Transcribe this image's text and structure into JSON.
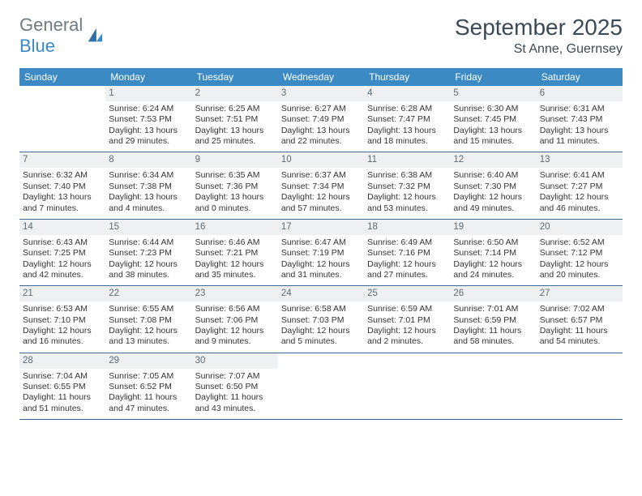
{
  "brand": {
    "word1": "General",
    "word2": "Blue"
  },
  "header": {
    "title": "September 2025",
    "location": "St Anne, Guernsey"
  },
  "colors": {
    "header_bg": "#3b8ac4",
    "header_text": "#ffffff",
    "daynum_bg": "#eef0f1",
    "daynum_text": "#5a6a74",
    "divider": "#3a6a95",
    "body_text": "#333333",
    "title_text": "#3a4a56"
  },
  "dow": [
    "Sunday",
    "Monday",
    "Tuesday",
    "Wednesday",
    "Thursday",
    "Friday",
    "Saturday"
  ],
  "weeks": [
    [
      {
        "blank": true
      },
      {
        "n": "1",
        "sr": "Sunrise: 6:24 AM",
        "ss": "Sunset: 7:53 PM",
        "dl": "Daylight: 13 hours and 29 minutes."
      },
      {
        "n": "2",
        "sr": "Sunrise: 6:25 AM",
        "ss": "Sunset: 7:51 PM",
        "dl": "Daylight: 13 hours and 25 minutes."
      },
      {
        "n": "3",
        "sr": "Sunrise: 6:27 AM",
        "ss": "Sunset: 7:49 PM",
        "dl": "Daylight: 13 hours and 22 minutes."
      },
      {
        "n": "4",
        "sr": "Sunrise: 6:28 AM",
        "ss": "Sunset: 7:47 PM",
        "dl": "Daylight: 13 hours and 18 minutes."
      },
      {
        "n": "5",
        "sr": "Sunrise: 6:30 AM",
        "ss": "Sunset: 7:45 PM",
        "dl": "Daylight: 13 hours and 15 minutes."
      },
      {
        "n": "6",
        "sr": "Sunrise: 6:31 AM",
        "ss": "Sunset: 7:43 PM",
        "dl": "Daylight: 13 hours and 11 minutes."
      }
    ],
    [
      {
        "n": "7",
        "sr": "Sunrise: 6:32 AM",
        "ss": "Sunset: 7:40 PM",
        "dl": "Daylight: 13 hours and 7 minutes."
      },
      {
        "n": "8",
        "sr": "Sunrise: 6:34 AM",
        "ss": "Sunset: 7:38 PM",
        "dl": "Daylight: 13 hours and 4 minutes."
      },
      {
        "n": "9",
        "sr": "Sunrise: 6:35 AM",
        "ss": "Sunset: 7:36 PM",
        "dl": "Daylight: 13 hours and 0 minutes."
      },
      {
        "n": "10",
        "sr": "Sunrise: 6:37 AM",
        "ss": "Sunset: 7:34 PM",
        "dl": "Daylight: 12 hours and 57 minutes."
      },
      {
        "n": "11",
        "sr": "Sunrise: 6:38 AM",
        "ss": "Sunset: 7:32 PM",
        "dl": "Daylight: 12 hours and 53 minutes."
      },
      {
        "n": "12",
        "sr": "Sunrise: 6:40 AM",
        "ss": "Sunset: 7:30 PM",
        "dl": "Daylight: 12 hours and 49 minutes."
      },
      {
        "n": "13",
        "sr": "Sunrise: 6:41 AM",
        "ss": "Sunset: 7:27 PM",
        "dl": "Daylight: 12 hours and 46 minutes."
      }
    ],
    [
      {
        "n": "14",
        "sr": "Sunrise: 6:43 AM",
        "ss": "Sunset: 7:25 PM",
        "dl": "Daylight: 12 hours and 42 minutes."
      },
      {
        "n": "15",
        "sr": "Sunrise: 6:44 AM",
        "ss": "Sunset: 7:23 PM",
        "dl": "Daylight: 12 hours and 38 minutes."
      },
      {
        "n": "16",
        "sr": "Sunrise: 6:46 AM",
        "ss": "Sunset: 7:21 PM",
        "dl": "Daylight: 12 hours and 35 minutes."
      },
      {
        "n": "17",
        "sr": "Sunrise: 6:47 AM",
        "ss": "Sunset: 7:19 PM",
        "dl": "Daylight: 12 hours and 31 minutes."
      },
      {
        "n": "18",
        "sr": "Sunrise: 6:49 AM",
        "ss": "Sunset: 7:16 PM",
        "dl": "Daylight: 12 hours and 27 minutes."
      },
      {
        "n": "19",
        "sr": "Sunrise: 6:50 AM",
        "ss": "Sunset: 7:14 PM",
        "dl": "Daylight: 12 hours and 24 minutes."
      },
      {
        "n": "20",
        "sr": "Sunrise: 6:52 AM",
        "ss": "Sunset: 7:12 PM",
        "dl": "Daylight: 12 hours and 20 minutes."
      }
    ],
    [
      {
        "n": "21",
        "sr": "Sunrise: 6:53 AM",
        "ss": "Sunset: 7:10 PM",
        "dl": "Daylight: 12 hours and 16 minutes."
      },
      {
        "n": "22",
        "sr": "Sunrise: 6:55 AM",
        "ss": "Sunset: 7:08 PM",
        "dl": "Daylight: 12 hours and 13 minutes."
      },
      {
        "n": "23",
        "sr": "Sunrise: 6:56 AM",
        "ss": "Sunset: 7:06 PM",
        "dl": "Daylight: 12 hours and 9 minutes."
      },
      {
        "n": "24",
        "sr": "Sunrise: 6:58 AM",
        "ss": "Sunset: 7:03 PM",
        "dl": "Daylight: 12 hours and 5 minutes."
      },
      {
        "n": "25",
        "sr": "Sunrise: 6:59 AM",
        "ss": "Sunset: 7:01 PM",
        "dl": "Daylight: 12 hours and 2 minutes."
      },
      {
        "n": "26",
        "sr": "Sunrise: 7:01 AM",
        "ss": "Sunset: 6:59 PM",
        "dl": "Daylight: 11 hours and 58 minutes."
      },
      {
        "n": "27",
        "sr": "Sunrise: 7:02 AM",
        "ss": "Sunset: 6:57 PM",
        "dl": "Daylight: 11 hours and 54 minutes."
      }
    ],
    [
      {
        "n": "28",
        "sr": "Sunrise: 7:04 AM",
        "ss": "Sunset: 6:55 PM",
        "dl": "Daylight: 11 hours and 51 minutes."
      },
      {
        "n": "29",
        "sr": "Sunrise: 7:05 AM",
        "ss": "Sunset: 6:52 PM",
        "dl": "Daylight: 11 hours and 47 minutes."
      },
      {
        "n": "30",
        "sr": "Sunrise: 7:07 AM",
        "ss": "Sunset: 6:50 PM",
        "dl": "Daylight: 11 hours and 43 minutes."
      },
      {
        "blank": true
      },
      {
        "blank": true
      },
      {
        "blank": true
      },
      {
        "blank": true
      }
    ]
  ]
}
